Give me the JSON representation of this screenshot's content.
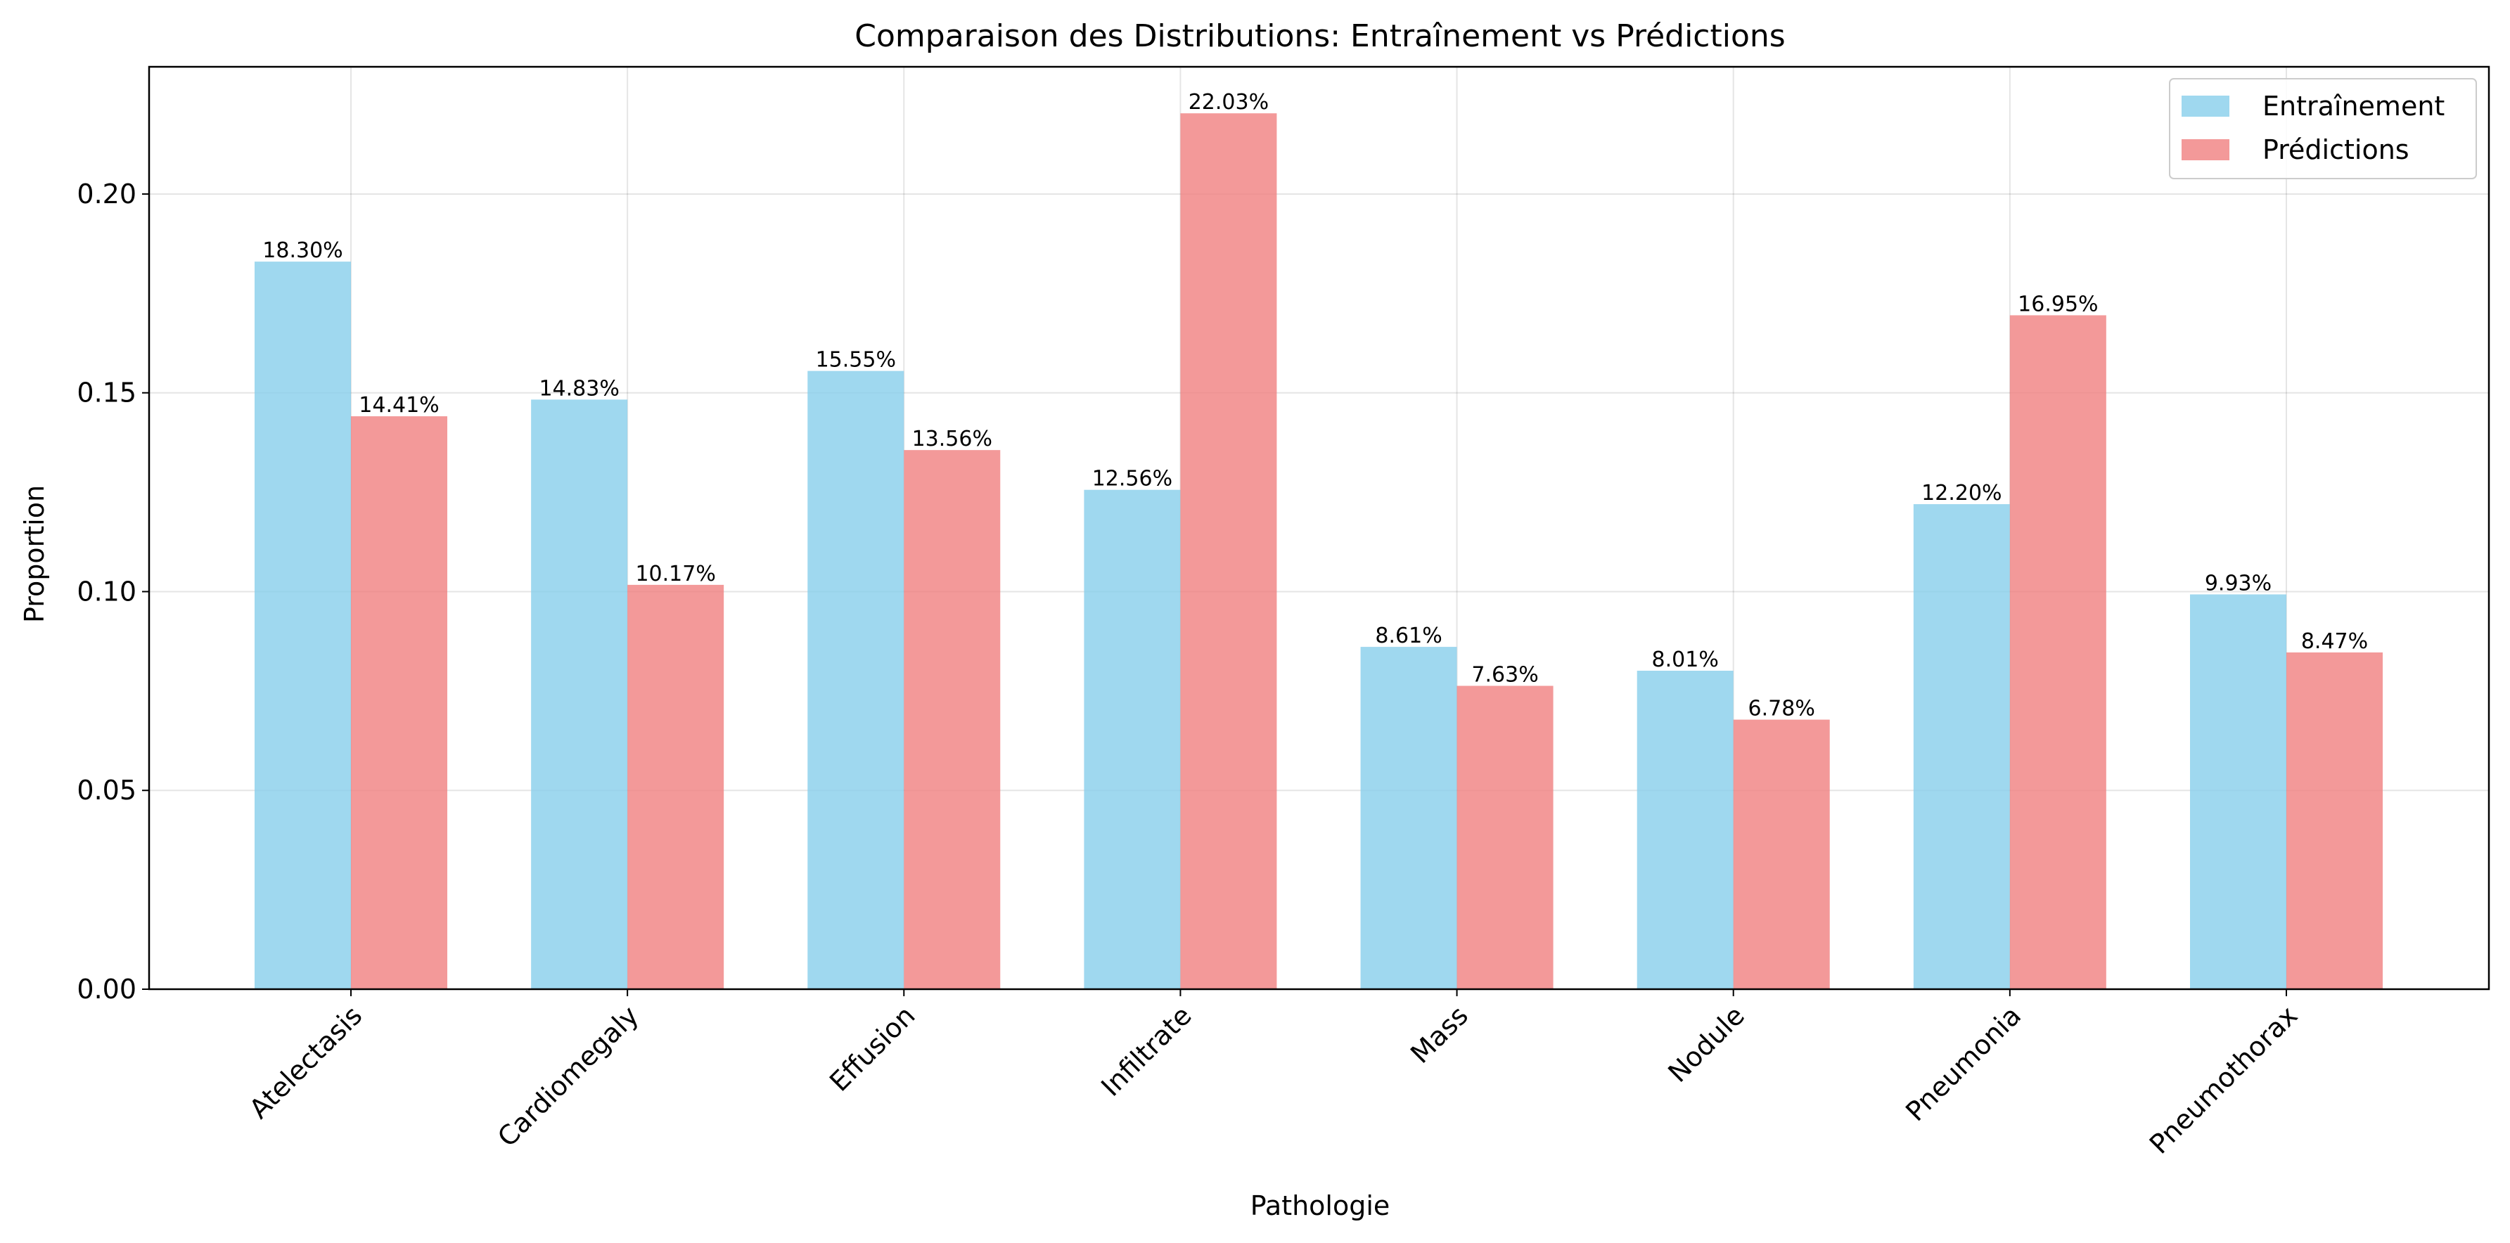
{
  "chart_data": {
    "type": "bar",
    "title": "Comparaison des Distributions: Entraînement vs Prédictions",
    "xlabel": "Pathologie",
    "ylabel": "Proportion",
    "ylim": [
      0,
      0.232
    ],
    "yticks": [
      "0.00",
      "0.05",
      "0.10",
      "0.15",
      "0.20"
    ],
    "ytick_values": [
      0,
      0.05,
      0.1,
      0.15,
      0.2
    ],
    "grid": true,
    "legend_position": "top-right",
    "categories": [
      "Atelectasis",
      "Cardiomegaly",
      "Effusion",
      "Infiltrate",
      "Mass",
      "Nodule",
      "Pneumonia",
      "Pneumothorax"
    ],
    "series": [
      {
        "name": "Entraînement",
        "color": "#87CEEB",
        "values": [
          0.183,
          0.1483,
          0.1555,
          0.1256,
          0.0861,
          0.0801,
          0.122,
          0.0993
        ],
        "labels": [
          "18.30%",
          "14.83%",
          "15.55%",
          "12.56%",
          "8.61%",
          "8.01%",
          "12.20%",
          "9.93%"
        ]
      },
      {
        "name": "Prédictions",
        "color": "#F08080",
        "values": [
          0.1441,
          0.1017,
          0.1356,
          0.2203,
          0.0763,
          0.0678,
          0.1695,
          0.0847
        ],
        "labels": [
          "14.41%",
          "10.17%",
          "13.56%",
          "22.03%",
          "7.63%",
          "6.78%",
          "16.95%",
          "8.47%"
        ]
      }
    ]
  }
}
